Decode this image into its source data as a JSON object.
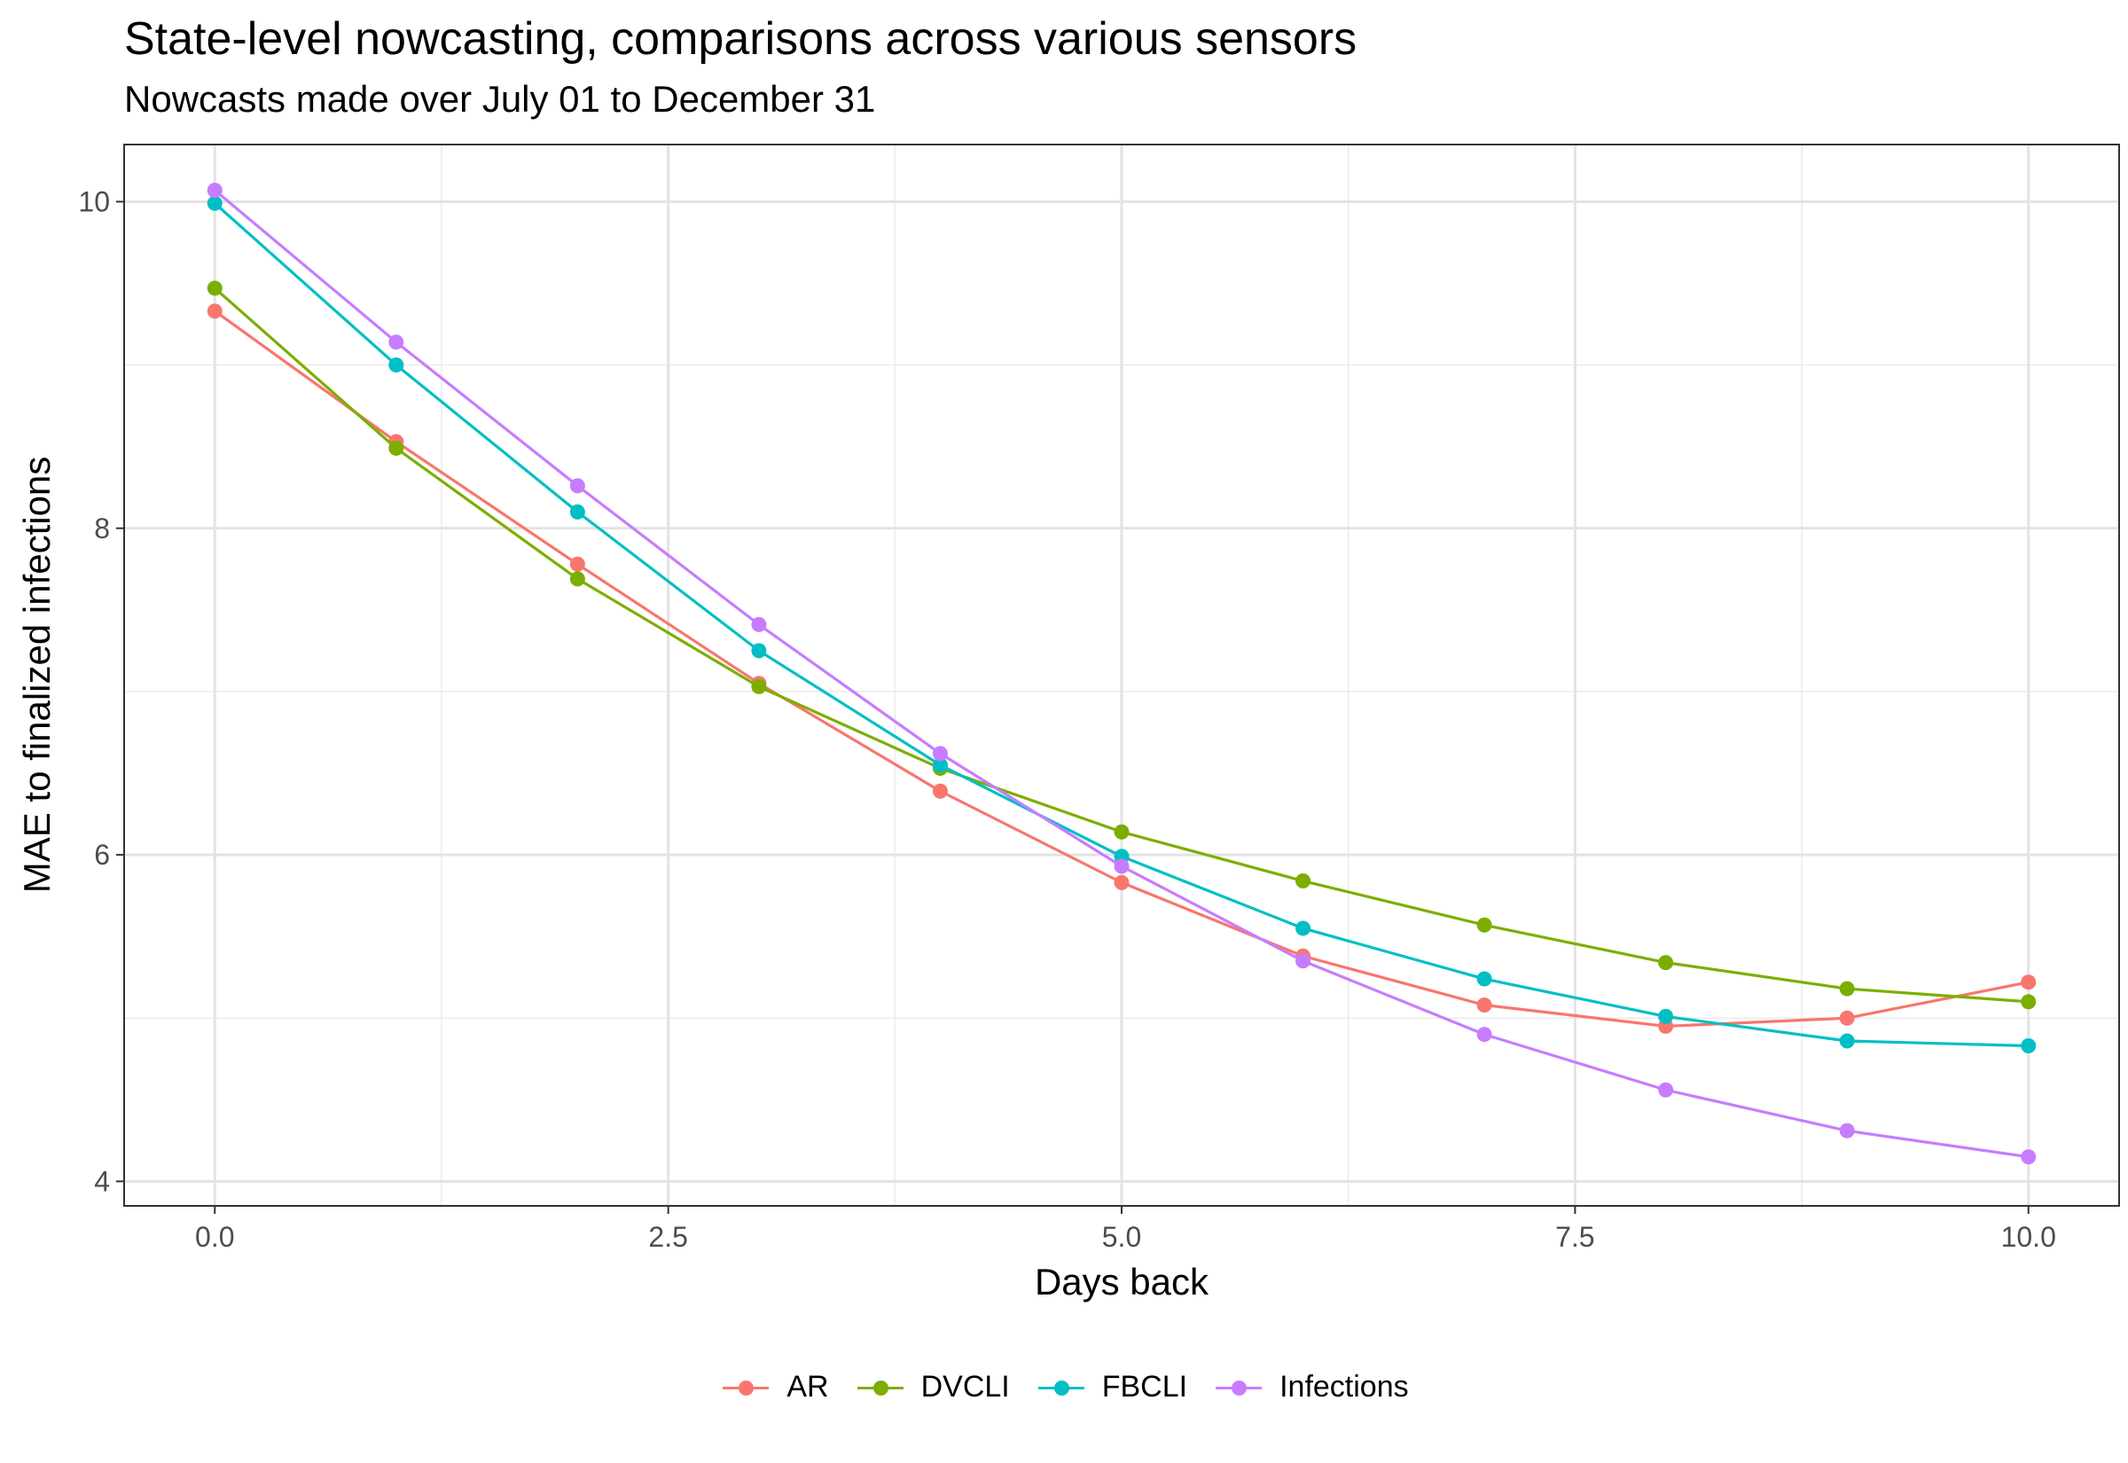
{
  "chart_data": {
    "type": "line",
    "title": "State-level nowcasting, comparisons across various sensors",
    "subtitle": "Nowcasts made over July 01 to December 31",
    "xlabel": "Days back",
    "ylabel": "MAE to finalized infections",
    "xlim": [
      -0.5,
      10.5
    ],
    "ylim": [
      3.85,
      10.35
    ],
    "x_ticks": [
      "0.0",
      "2.5",
      "5.0",
      "7.5",
      "10.0"
    ],
    "y_ticks": [
      "4",
      "6",
      "8",
      "10"
    ],
    "grid": true,
    "legend_position": "bottom",
    "x": [
      0,
      1,
      2,
      3,
      4,
      5,
      6,
      7,
      8,
      9,
      10
    ],
    "series": [
      {
        "name": "AR",
        "color": "#F8766D",
        "values": [
          9.33,
          8.53,
          7.78,
          7.05,
          6.39,
          5.83,
          5.38,
          5.08,
          4.95,
          5.0,
          5.22
        ]
      },
      {
        "name": "DVCLI",
        "color": "#7CAE00",
        "values": [
          9.47,
          8.49,
          7.69,
          7.03,
          6.53,
          6.14,
          5.84,
          5.57,
          5.34,
          5.18,
          5.1
        ]
      },
      {
        "name": "FBCLI",
        "color": "#00BFC4",
        "values": [
          9.99,
          9.0,
          8.1,
          7.25,
          6.55,
          5.99,
          5.55,
          5.24,
          5.01,
          4.86,
          4.83
        ]
      },
      {
        "name": "Infections",
        "color": "#C77CFF",
        "values": [
          10.07,
          9.14,
          8.26,
          7.41,
          6.62,
          5.93,
          5.35,
          4.9,
          4.56,
          4.31,
          4.15
        ]
      }
    ]
  }
}
